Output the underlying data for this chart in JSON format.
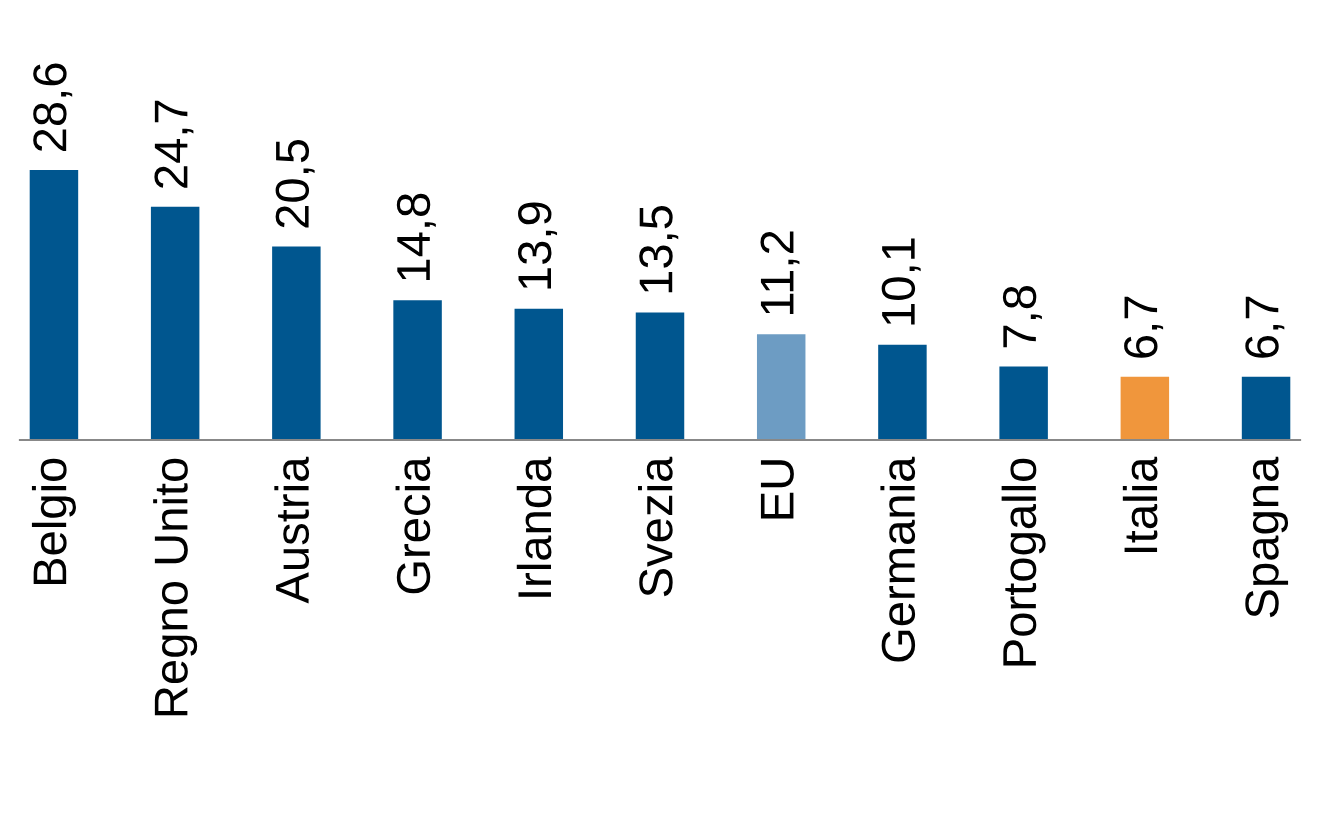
{
  "chart_data": {
    "type": "bar",
    "categories": [
      "Belgio",
      "Regno Unito",
      "Austria",
      "Grecia",
      "Irlanda",
      "Svezia",
      "EU",
      "Germania",
      "Portogallo",
      "Italia",
      "Spagna"
    ],
    "values": [
      28.6,
      24.7,
      20.5,
      14.8,
      13.9,
      13.5,
      11.2,
      10.1,
      7.8,
      6.7,
      6.7
    ],
    "value_labels": [
      "28,6",
      "24,7",
      "20,5",
      "14,8",
      "13,9",
      "13,5",
      "11,2",
      "10,1",
      "7,8",
      "6,7",
      "6,7"
    ],
    "colors": [
      "#00568f",
      "#00568f",
      "#00568f",
      "#00568f",
      "#00568f",
      "#00568f",
      "#6d9cc3",
      "#00568f",
      "#00568f",
      "#f0963c",
      "#00568f"
    ],
    "grid": false,
    "legend": false
  }
}
